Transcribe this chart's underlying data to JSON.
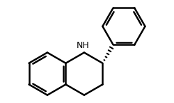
{
  "bg_color": "#ffffff",
  "bond_color": "#000000",
  "bond_lw": 1.8,
  "nh_label": "NH",
  "nh_fontsize": 9,
  "fig_width": 2.5,
  "fig_height": 1.48,
  "dpi": 100
}
